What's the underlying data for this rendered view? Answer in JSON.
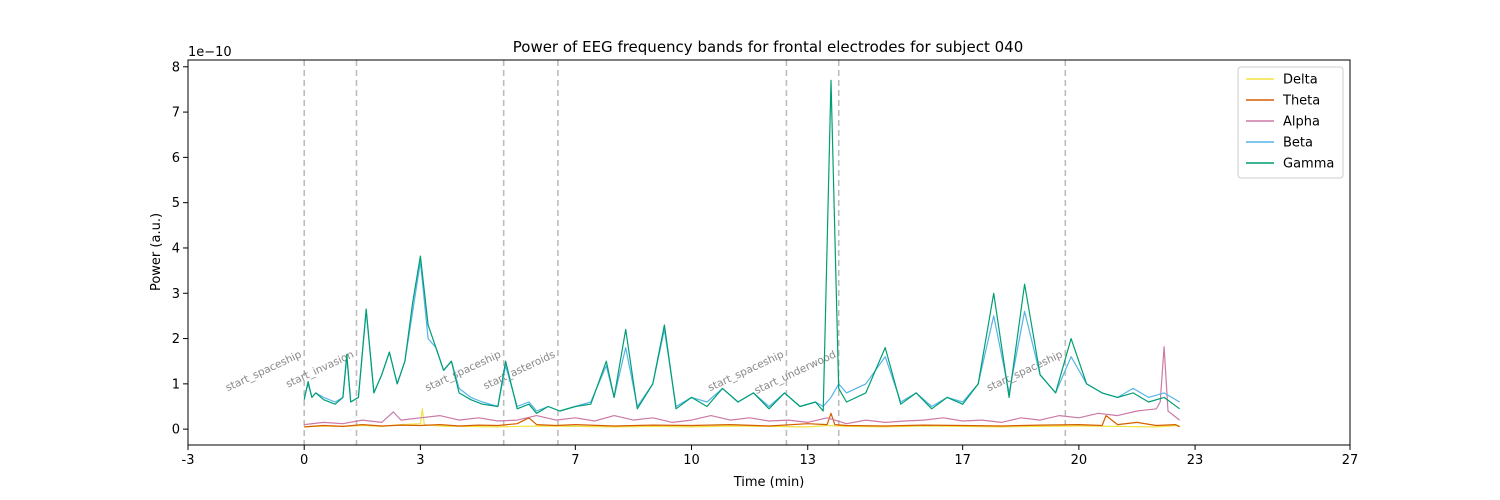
{
  "chart_data": {
    "type": "line",
    "title": "Power of EEG frequency bands for frontal electrodes for subject 040",
    "xlabel": "Time (min)",
    "ylabel": "Power (a.u.)",
    "y_multiplier": "1e−10",
    "xlim": [
      -3,
      27
    ],
    "ylim": [
      -0.35,
      8.15
    ],
    "x_ticks": [
      -3,
      0,
      3,
      7,
      10,
      13,
      17,
      20,
      23,
      27
    ],
    "x_tick_labels": [
      "-3",
      "0",
      "3",
      "7",
      "10",
      "13",
      "17",
      "20",
      "23",
      "27"
    ],
    "y_ticks": [
      0,
      1,
      2,
      3,
      4,
      5,
      6,
      7,
      8
    ],
    "y_tick_labels": [
      "0",
      "1",
      "2",
      "3",
      "4",
      "5",
      "6",
      "7",
      "8"
    ],
    "grid": false,
    "legend_position": "top-right",
    "events": [
      {
        "x": 0.0,
        "label": "start_spaceship"
      },
      {
        "x": 1.35,
        "label": "start_invasion"
      },
      {
        "x": 5.15,
        "label": "start_spaceship"
      },
      {
        "x": 6.55,
        "label": "start_asteroids"
      },
      {
        "x": 12.45,
        "label": "start_spaceship"
      },
      {
        "x": 13.8,
        "label": "start_underwood"
      },
      {
        "x": 19.65,
        "label": "start_spaceship"
      }
    ],
    "series": [
      {
        "name": "Delta",
        "color": "#f0e442",
        "x": [
          0,
          0.5,
          1,
          1.5,
          2,
          2.5,
          3,
          3.05,
          3.1,
          3.5,
          4,
          5,
          6,
          7,
          8,
          9,
          10,
          11,
          12,
          13,
          13.5,
          14,
          15,
          16,
          17,
          18,
          19,
          20,
          21,
          22,
          22.6
        ],
        "y": [
          0.05,
          0.07,
          0.06,
          0.08,
          0.06,
          0.1,
          0.12,
          0.45,
          0.1,
          0.07,
          0.06,
          0.05,
          0.07,
          0.06,
          0.05,
          0.06,
          0.05,
          0.07,
          0.06,
          0.05,
          0.08,
          0.06,
          0.05,
          0.07,
          0.06,
          0.05,
          0.06,
          0.07,
          0.06,
          0.05,
          0.08
        ]
      },
      {
        "name": "Theta",
        "color": "#d55e00",
        "x": [
          0,
          0.5,
          1,
          1.5,
          2,
          2.5,
          3,
          3.5,
          4,
          4.5,
          5,
          5.5,
          5.8,
          6,
          6.5,
          7,
          8,
          9,
          10,
          11,
          12,
          13,
          13.5,
          13.6,
          13.7,
          14,
          15,
          16,
          17,
          18,
          19,
          20,
          20.6,
          20.7,
          21,
          21.5,
          22,
          22.5,
          22.6
        ],
        "y": [
          0.05,
          0.08,
          0.06,
          0.1,
          0.07,
          0.09,
          0.08,
          0.1,
          0.07,
          0.09,
          0.08,
          0.12,
          0.25,
          0.1,
          0.08,
          0.1,
          0.07,
          0.09,
          0.08,
          0.1,
          0.07,
          0.12,
          0.1,
          0.35,
          0.1,
          0.08,
          0.07,
          0.09,
          0.08,
          0.07,
          0.09,
          0.1,
          0.08,
          0.3,
          0.1,
          0.15,
          0.08,
          0.1,
          0.05
        ]
      },
      {
        "name": "Alpha",
        "color": "#cc79a7",
        "x": [
          0,
          0.5,
          1,
          1.5,
          2,
          2.3,
          2.5,
          3,
          3.5,
          4,
          4.5,
          5,
          5.5,
          6,
          6.5,
          7,
          7.5,
          8,
          8.5,
          9,
          9.5,
          10,
          10.5,
          11,
          11.5,
          12,
          12.5,
          13,
          13.5,
          14,
          14.5,
          15,
          15.5,
          16,
          16.5,
          17,
          17.5,
          18,
          18.5,
          19,
          19.5,
          20,
          20.5,
          21,
          21.5,
          22,
          22.1,
          22.2,
          22.3,
          22.6
        ],
        "y": [
          0.1,
          0.15,
          0.12,
          0.2,
          0.15,
          0.38,
          0.2,
          0.25,
          0.3,
          0.2,
          0.25,
          0.18,
          0.2,
          0.3,
          0.2,
          0.25,
          0.18,
          0.3,
          0.2,
          0.25,
          0.15,
          0.2,
          0.3,
          0.2,
          0.25,
          0.18,
          0.2,
          0.15,
          0.25,
          0.12,
          0.2,
          0.15,
          0.18,
          0.2,
          0.25,
          0.18,
          0.2,
          0.15,
          0.25,
          0.2,
          0.3,
          0.25,
          0.35,
          0.3,
          0.4,
          0.45,
          0.6,
          1.82,
          0.4,
          0.2
        ]
      },
      {
        "name": "Beta",
        "color": "#56b4e9",
        "x": [
          0,
          0.1,
          0.2,
          0.3,
          0.5,
          0.8,
          1,
          1.1,
          1.2,
          1.4,
          1.6,
          1.8,
          2,
          2.2,
          2.4,
          2.6,
          2.8,
          3,
          3.2,
          3.4,
          3.6,
          3.8,
          4,
          4.3,
          4.6,
          5,
          5.2,
          5.5,
          5.8,
          6,
          6.3,
          6.6,
          7,
          7.4,
          7.8,
          8,
          8.3,
          8.6,
          9,
          9.3,
          9.6,
          10,
          10.4,
          10.8,
          11.2,
          11.6,
          12,
          12.4,
          12.8,
          13.2,
          13.4,
          13.6,
          13.8,
          14,
          14.5,
          15,
          15.4,
          15.8,
          16.2,
          16.6,
          17,
          17.4,
          17.8,
          18.2,
          18.6,
          19,
          19.4,
          19.8,
          20.2,
          20.6,
          21,
          21.4,
          21.8,
          22.2,
          22.6
        ],
        "y": [
          0.7,
          1.0,
          0.7,
          0.8,
          0.7,
          0.6,
          0.7,
          1.6,
          0.6,
          0.7,
          2.6,
          0.8,
          1.2,
          1.7,
          1.0,
          1.5,
          2.6,
          3.7,
          2.0,
          1.8,
          1.3,
          1.5,
          0.9,
          0.7,
          0.6,
          0.5,
          1.4,
          0.5,
          0.6,
          0.4,
          0.5,
          0.4,
          0.5,
          0.6,
          1.4,
          0.7,
          1.8,
          0.5,
          1.0,
          2.2,
          0.5,
          0.7,
          0.6,
          0.9,
          0.6,
          0.8,
          0.5,
          0.8,
          0.5,
          0.6,
          0.5,
          0.7,
          1.0,
          0.8,
          1.0,
          1.6,
          0.6,
          0.8,
          0.5,
          0.7,
          0.6,
          1.0,
          2.5,
          0.8,
          2.6,
          1.2,
          0.8,
          1.6,
          1.0,
          0.8,
          0.7,
          0.9,
          0.7,
          0.8,
          0.6
        ]
      },
      {
        "name": "Gamma",
        "color": "#009e73",
        "x": [
          0,
          0.1,
          0.2,
          0.3,
          0.5,
          0.8,
          1,
          1.1,
          1.2,
          1.4,
          1.6,
          1.8,
          2,
          2.2,
          2.4,
          2.6,
          2.8,
          3,
          3.2,
          3.4,
          3.6,
          3.8,
          4,
          4.3,
          4.6,
          5,
          5.2,
          5.5,
          5.8,
          6,
          6.3,
          6.6,
          7,
          7.4,
          7.8,
          8,
          8.3,
          8.6,
          9,
          9.3,
          9.6,
          10,
          10.4,
          10.8,
          11.2,
          11.6,
          12,
          12.4,
          12.8,
          13.2,
          13.4,
          13.6,
          13.8,
          14,
          14.5,
          15,
          15.4,
          15.8,
          16.2,
          16.6,
          17,
          17.4,
          17.8,
          18.2,
          18.6,
          19,
          19.4,
          19.8,
          20.2,
          20.6,
          21,
          21.4,
          21.8,
          22.2,
          22.6
        ],
        "y": [
          0.65,
          1.05,
          0.7,
          0.8,
          0.65,
          0.55,
          0.7,
          1.65,
          0.6,
          0.7,
          2.65,
          0.8,
          1.2,
          1.7,
          1.0,
          1.5,
          2.8,
          3.82,
          2.3,
          1.8,
          1.3,
          1.5,
          0.8,
          0.65,
          0.55,
          0.5,
          1.5,
          0.45,
          0.55,
          0.35,
          0.5,
          0.4,
          0.5,
          0.55,
          1.5,
          0.7,
          2.2,
          0.45,
          1.0,
          2.3,
          0.45,
          0.7,
          0.5,
          0.9,
          0.6,
          0.8,
          0.45,
          0.8,
          0.5,
          0.6,
          0.4,
          7.7,
          0.9,
          0.6,
          0.8,
          1.8,
          0.55,
          0.8,
          0.45,
          0.7,
          0.55,
          1.0,
          3.0,
          0.7,
          3.2,
          1.2,
          0.8,
          2.0,
          1.0,
          0.8,
          0.7,
          0.8,
          0.6,
          0.7,
          0.45
        ]
      }
    ]
  }
}
